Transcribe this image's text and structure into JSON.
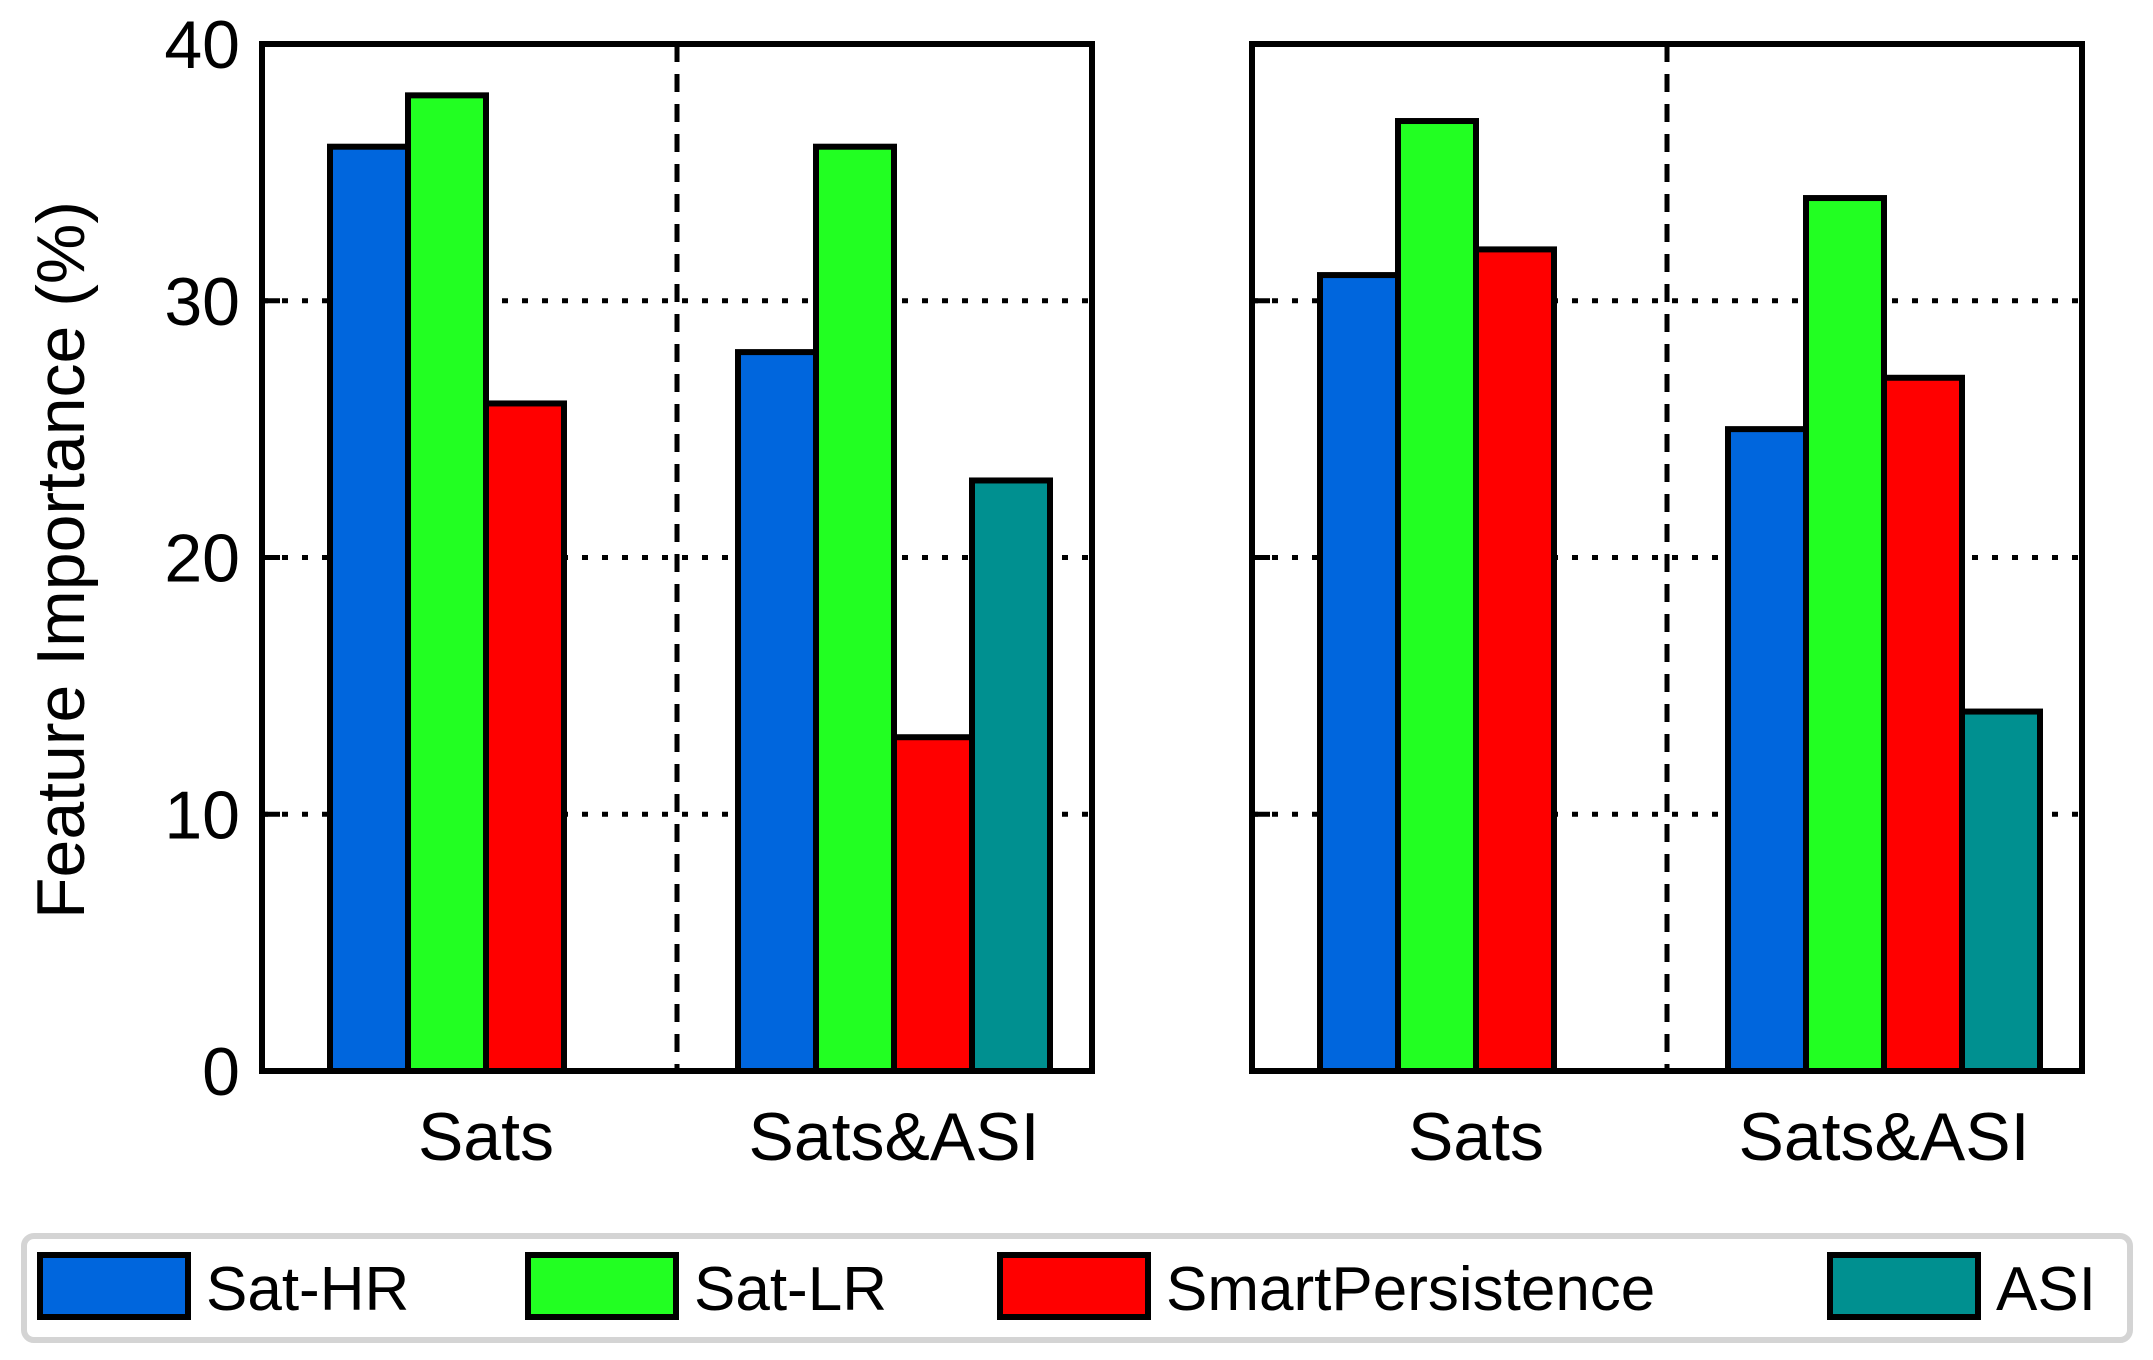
{
  "chart_data": {
    "type": "bar",
    "ylabel": "Feature Importance (%)",
    "ylim": [
      0,
      40
    ],
    "yticks": [
      "0",
      "10",
      "20",
      "30",
      "40"
    ],
    "grid": "horizontal dotted",
    "legend_position": "bottom",
    "colors": {
      "Sat-HR": "#0066dd",
      "Sat-LR": "#22ff22",
      "SmartPersistence": "#ff0000",
      "ASI": "#009090"
    },
    "legend": [
      "Sat-HR",
      "Sat-LR",
      "SmartPersistence",
      "ASI"
    ],
    "panels": [
      {
        "categories": [
          "Sats",
          "Sats&ASI"
        ],
        "series": [
          {
            "name": "Sat-HR",
            "values": [
              36,
              28
            ]
          },
          {
            "name": "Sat-LR",
            "values": [
              38,
              36
            ]
          },
          {
            "name": "SmartPersistence",
            "values": [
              26,
              13
            ]
          },
          {
            "name": "ASI",
            "values": [
              0,
              23
            ]
          }
        ]
      },
      {
        "categories": [
          "Sats",
          "Sats&ASI"
        ],
        "series": [
          {
            "name": "Sat-HR",
            "values": [
              31,
              25
            ]
          },
          {
            "name": "Sat-LR",
            "values": [
              37,
              34
            ]
          },
          {
            "name": "SmartPersistence",
            "values": [
              32,
              27
            ]
          },
          {
            "name": "ASI",
            "values": [
              0,
              14
            ]
          }
        ]
      }
    ]
  }
}
